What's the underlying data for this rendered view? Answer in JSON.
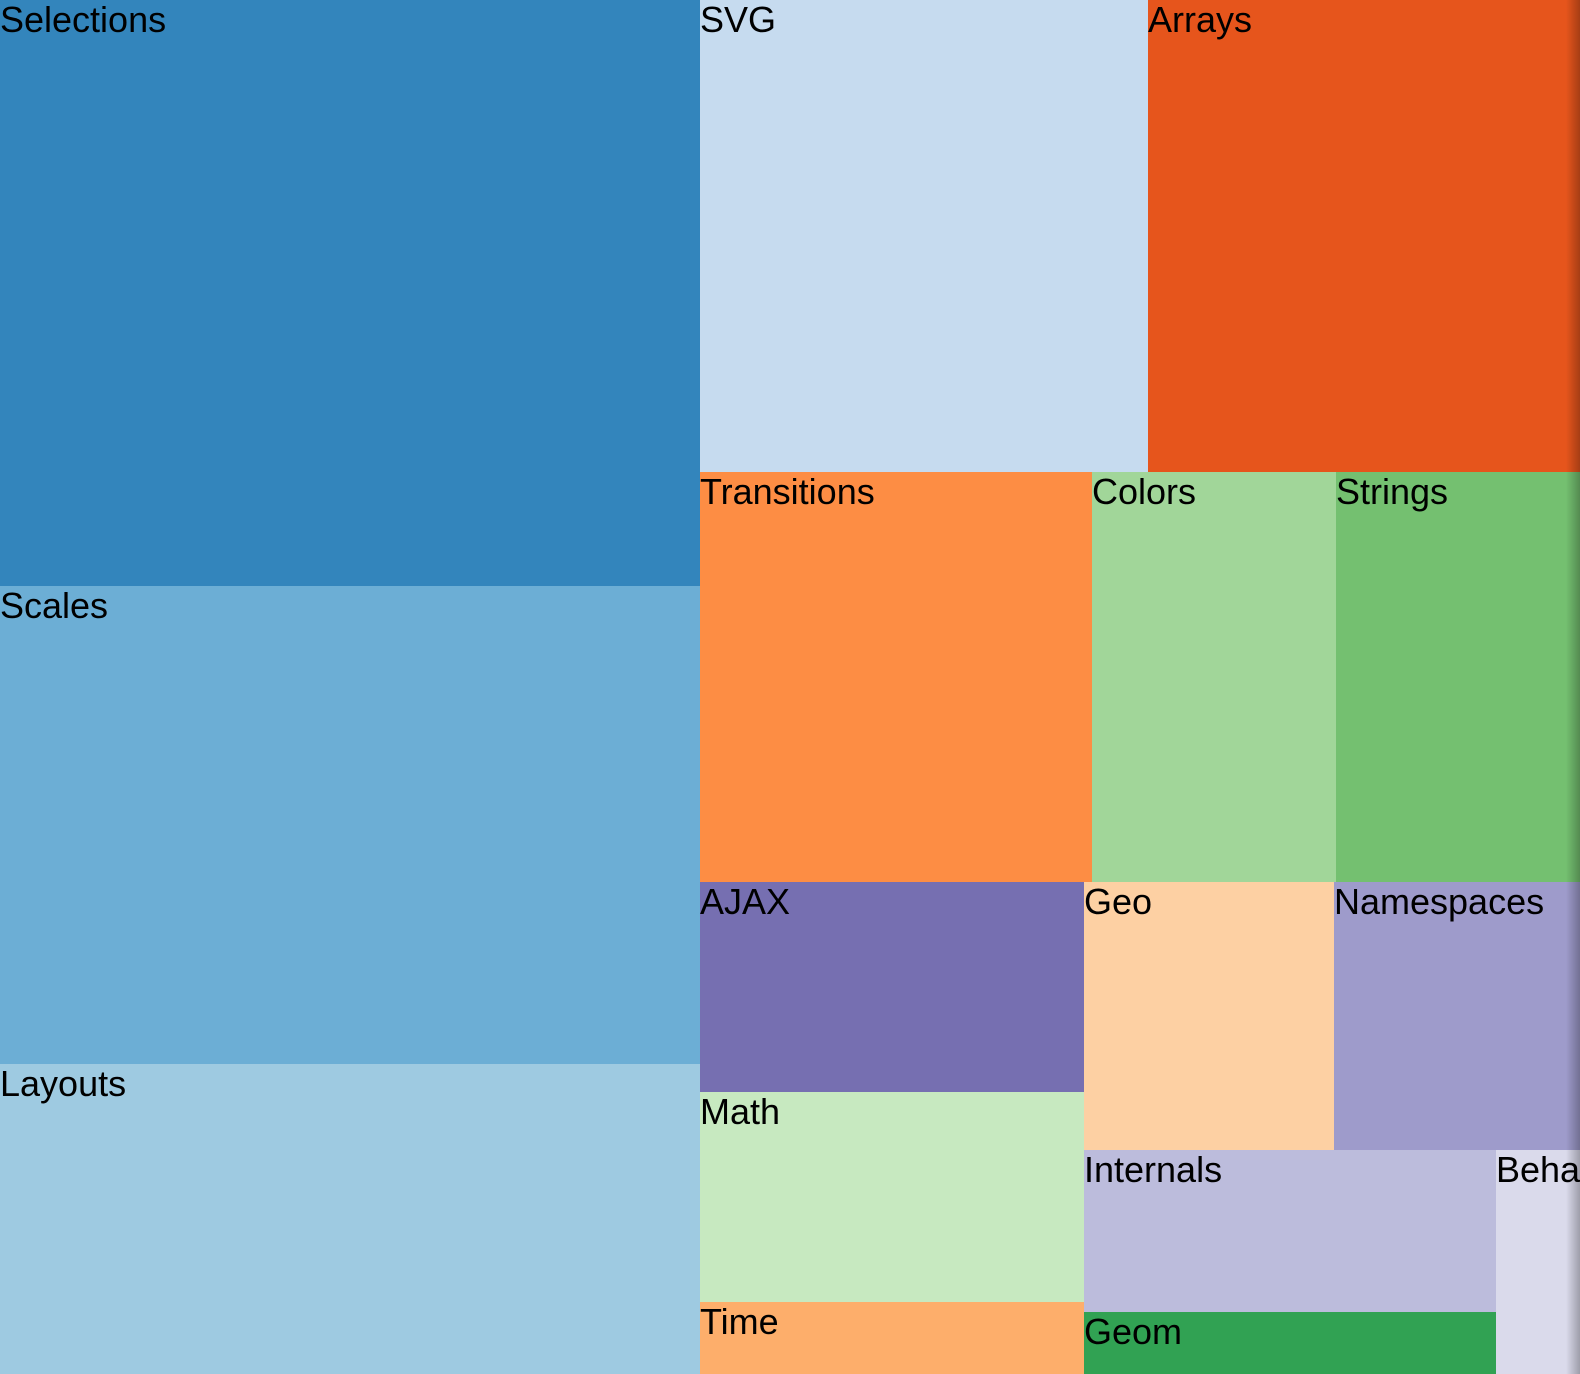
{
  "chart_data": {
    "type": "treemap",
    "title": "",
    "cells": [
      {
        "label": "Selections",
        "color": "#3385bc"
      },
      {
        "label": "Scales",
        "color": "#6caed5"
      },
      {
        "label": "Layouts",
        "color": "#9ecae1"
      },
      {
        "label": "SVG",
        "color": "#c6dbef"
      },
      {
        "label": "Arrays",
        "color": "#e6551c"
      },
      {
        "label": "Transitions",
        "color": "#fd8d44"
      },
      {
        "label": "Colors",
        "color": "#a1d699"
      },
      {
        "label": "Strings",
        "color": "#74c070"
      },
      {
        "label": "AJAX",
        "color": "#766fb1"
      },
      {
        "label": "Geo",
        "color": "#fdd0a3"
      },
      {
        "label": "Namespaces",
        "color": "#9e9bcb"
      },
      {
        "label": "Math",
        "color": "#c7e9c0"
      },
      {
        "label": "Internals",
        "color": "#bcbcdc"
      },
      {
        "label": "Behaviors",
        "color": "#dadaeb"
      },
      {
        "label": "Time",
        "color": "#fdae6b"
      },
      {
        "label": "Geom",
        "color": "#31a253"
      }
    ]
  }
}
